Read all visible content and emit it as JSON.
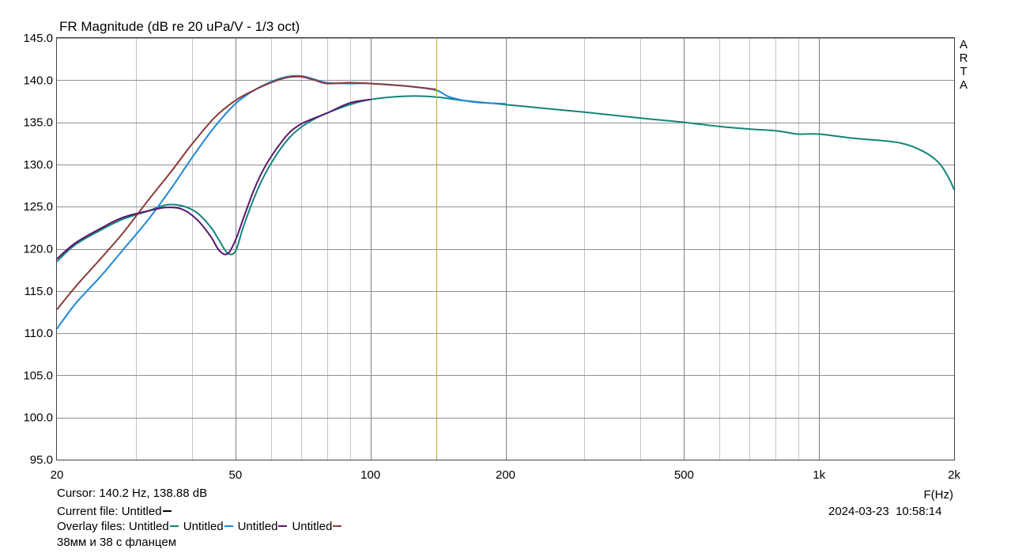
{
  "chart_data": {
    "type": "line",
    "title": "FR Magnitude (dB re 20 uPa/V - 1/3 oct)",
    "xlabel": "F(Hz)",
    "x_scale": "log",
    "xlim": [
      20,
      2000
    ],
    "ylim": [
      95,
      145
    ],
    "grid": true,
    "x_ticks": [
      20,
      50,
      100,
      200,
      500,
      1000,
      2000
    ],
    "x_tick_labels": [
      "20",
      "50",
      "100",
      "200",
      "500",
      "1k",
      "2k"
    ],
    "y_ticks": [
      95,
      100,
      105,
      110,
      115,
      120,
      125,
      130,
      135,
      140,
      145
    ],
    "y_tick_labels": [
      "95.0",
      "100.0",
      "105.0",
      "110.0",
      "115.0",
      "120.0",
      "125.0",
      "130.0",
      "135.0",
      "140.0",
      "145.0"
    ],
    "cursor_x": 140.2,
    "series": [
      {
        "name": "Untitled",
        "color": "#12857a",
        "x": [
          20,
          22,
          25,
          28,
          32,
          35,
          38,
          41,
          44,
          46,
          48,
          50,
          52,
          55,
          58,
          62,
          66,
          70,
          75,
          80,
          90,
          100,
          120,
          140,
          160,
          200,
          250,
          300,
          400,
          500,
          600,
          700,
          800,
          850,
          900,
          1000,
          1200,
          1500,
          1700,
          1850,
          1950,
          2000
        ],
        "y": [
          118.5,
          120.5,
          122.2,
          123.5,
          124.5,
          125.2,
          125.1,
          124.3,
          122.6,
          121.0,
          119.5,
          119.7,
          122.5,
          126.0,
          128.7,
          131.3,
          133.2,
          134.4,
          135.4,
          136.1,
          137.1,
          137.7,
          138.1,
          138.0,
          137.6,
          137.1,
          136.6,
          136.2,
          135.5,
          135.0,
          134.5,
          134.2,
          134.0,
          133.8,
          133.6,
          133.6,
          133.1,
          132.6,
          131.6,
          130.2,
          128.3,
          127.0
        ]
      },
      {
        "name": "Untitled",
        "color": "#1e88d8",
        "x": [
          20,
          22,
          25,
          28,
          32,
          36,
          40,
          45,
          50,
          55,
          60,
          65,
          70,
          75,
          80,
          90,
          100,
          120,
          140,
          150,
          170,
          200
        ],
        "y": [
          110.5,
          113.5,
          116.7,
          119.8,
          123.5,
          127.2,
          130.8,
          134.5,
          137.2,
          138.8,
          139.8,
          140.4,
          140.5,
          140.1,
          139.7,
          139.6,
          139.6,
          139.3,
          138.8,
          138.0,
          137.4,
          137.2
        ]
      },
      {
        "name": "Untitled",
        "color": "#5c1670",
        "x": [
          20,
          22,
          25,
          28,
          32,
          35,
          38,
          41,
          44,
          46,
          48,
          50,
          52,
          55,
          58,
          62,
          66,
          70,
          75,
          80,
          90,
          100
        ],
        "y": [
          118.8,
          120.7,
          122.4,
          123.7,
          124.5,
          124.9,
          124.7,
          123.5,
          121.5,
          119.8,
          119.4,
          121.0,
          123.5,
          127.0,
          129.6,
          132.0,
          133.8,
          134.8,
          135.5,
          136.1,
          137.3,
          137.7
        ]
      },
      {
        "name": "Untitled",
        "color": "#8b3a3a",
        "x": [
          20,
          22,
          25,
          28,
          32,
          36,
          40,
          45,
          50,
          55,
          60,
          65,
          70,
          75,
          80,
          90,
          100,
          120,
          140
        ],
        "y": [
          112.8,
          115.5,
          118.8,
          121.8,
          125.8,
          129.2,
          132.4,
          135.6,
          137.6,
          138.8,
          139.7,
          140.3,
          140.4,
          140.0,
          139.6,
          139.7,
          139.6,
          139.3,
          138.9
        ]
      }
    ]
  },
  "brand": [
    "A",
    "R",
    "T",
    "A"
  ],
  "cursor_text": "Cursor: 140.2 Hz, 138.88 dB",
  "current_file_label": "Current file: Untitled",
  "current_file_color": "#000000",
  "overlay_label": "Overlay files:",
  "overlay_files": [
    "Untitled",
    "Untitled",
    "Untitled",
    "Untitled"
  ],
  "comment": "38мм и 38 с фланцем",
  "date": "2024-03-23",
  "time": "10:58:14"
}
